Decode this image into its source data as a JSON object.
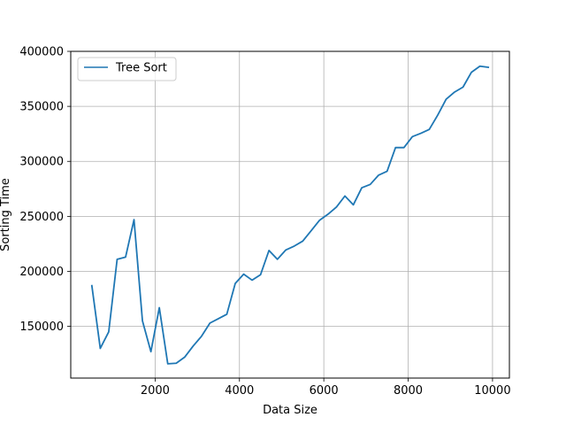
{
  "chart_data": {
    "type": "line",
    "xlabel": "Data Size",
    "ylabel": "Sorting Time",
    "xlim": [
      0,
      10400
    ],
    "ylim": [
      103000,
      400000
    ],
    "xticks": [
      2000,
      4000,
      6000,
      8000,
      10000
    ],
    "yticks": [
      150000,
      200000,
      250000,
      300000,
      350000,
      400000
    ],
    "grid": true,
    "legend_position": "upper-left",
    "series": [
      {
        "name": "Tree Sort",
        "color": "#1f77b4",
        "x": [
          500,
          700,
          900,
          1100,
          1300,
          1500,
          1700,
          1900,
          2100,
          2300,
          2500,
          2700,
          2900,
          3100,
          3300,
          3500,
          3700,
          3900,
          4100,
          4300,
          4500,
          4700,
          4900,
          5100,
          5300,
          5500,
          5700,
          5900,
          6100,
          6300,
          6500,
          6700,
          6900,
          7100,
          7300,
          7500,
          7700,
          7900,
          8100,
          8300,
          8500,
          8700,
          8900,
          9100,
          9300,
          9500,
          9700,
          9900
        ],
        "y": [
          187000,
          130000,
          145000,
          211000,
          213000,
          247000,
          155000,
          127000,
          167000,
          116000,
          116500,
          122000,
          132000,
          141000,
          153000,
          157000,
          161000,
          189000,
          197500,
          192000,
          197000,
          219000,
          211000,
          219500,
          223000,
          227500,
          237000,
          246500,
          252000,
          258500,
          268500,
          260500,
          276000,
          279000,
          287500,
          291000,
          312500,
          312500,
          322500,
          325500,
          329000,
          342000,
          356500,
          363000,
          367500,
          381000,
          386500,
          385500
        ]
      }
    ]
  }
}
